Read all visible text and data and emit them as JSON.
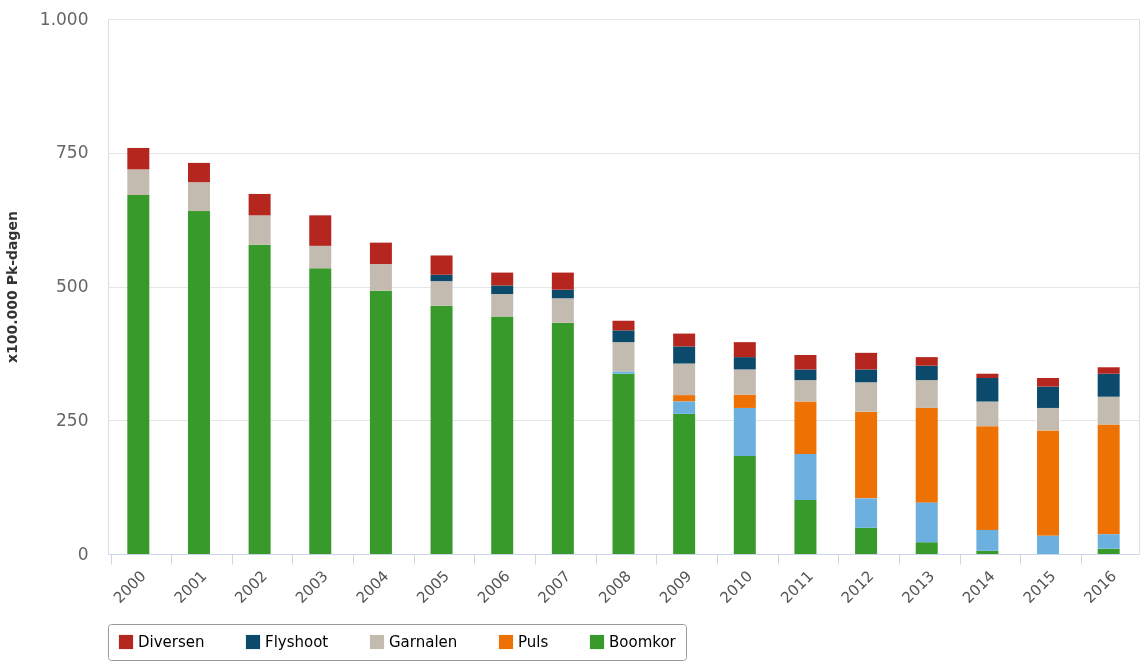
{
  "chart_data": {
    "type": "bar",
    "stacked": true,
    "ylabel": "x100.000 Pk-dagen",
    "categories": [
      "2000",
      "2001",
      "2002",
      "2003",
      "2004",
      "2005",
      "2006",
      "2007",
      "2008",
      "2009",
      "2010",
      "2011",
      "2012",
      "2013",
      "2014",
      "2015",
      "2016"
    ],
    "series": [
      {
        "name": "Boomkor",
        "color": "#389a2a",
        "values": [
          671,
          641,
          578,
          534,
          492,
          464,
          444,
          432,
          337,
          262,
          183,
          101,
          49,
          22,
          6,
          0,
          10
        ]
      },
      {
        "color": "#6cb0e0",
        "values": [
          0,
          0,
          0,
          0,
          0,
          0,
          0,
          0,
          4,
          23,
          90,
          86,
          55,
          74,
          39,
          34,
          27
        ]
      },
      {
        "name": "Puls",
        "color": "#ee7203",
        "values": [
          0,
          0,
          0,
          0,
          0,
          0,
          0,
          0,
          0,
          12,
          25,
          98,
          162,
          177,
          194,
          197,
          205
        ]
      },
      {
        "name": "Garnalen",
        "color": "#c4bbb0",
        "values": [
          48,
          54,
          55,
          42,
          50,
          46,
          42,
          46,
          55,
          59,
          47,
          40,
          55,
          52,
          46,
          42,
          52
        ]
      },
      {
        "name": "Flyshoot",
        "color": "#0b4a6a",
        "values": [
          0,
          0,
          0,
          0,
          0,
          12,
          16,
          16,
          22,
          32,
          23,
          20,
          24,
          27,
          44,
          40,
          43
        ]
      },
      {
        "name": "Diversen",
        "color": "#b5261e",
        "values": [
          40,
          36,
          40,
          57,
          40,
          36,
          24,
          32,
          18,
          24,
          28,
          27,
          31,
          16,
          8,
          16,
          12
        ]
      }
    ],
    "ylim": [
      0,
      1000
    ],
    "yticks": [
      0,
      250,
      500,
      750,
      {
        "value": 1000,
        "label": "1.000"
      }
    ],
    "grid": "y",
    "legend": "bottom"
  }
}
